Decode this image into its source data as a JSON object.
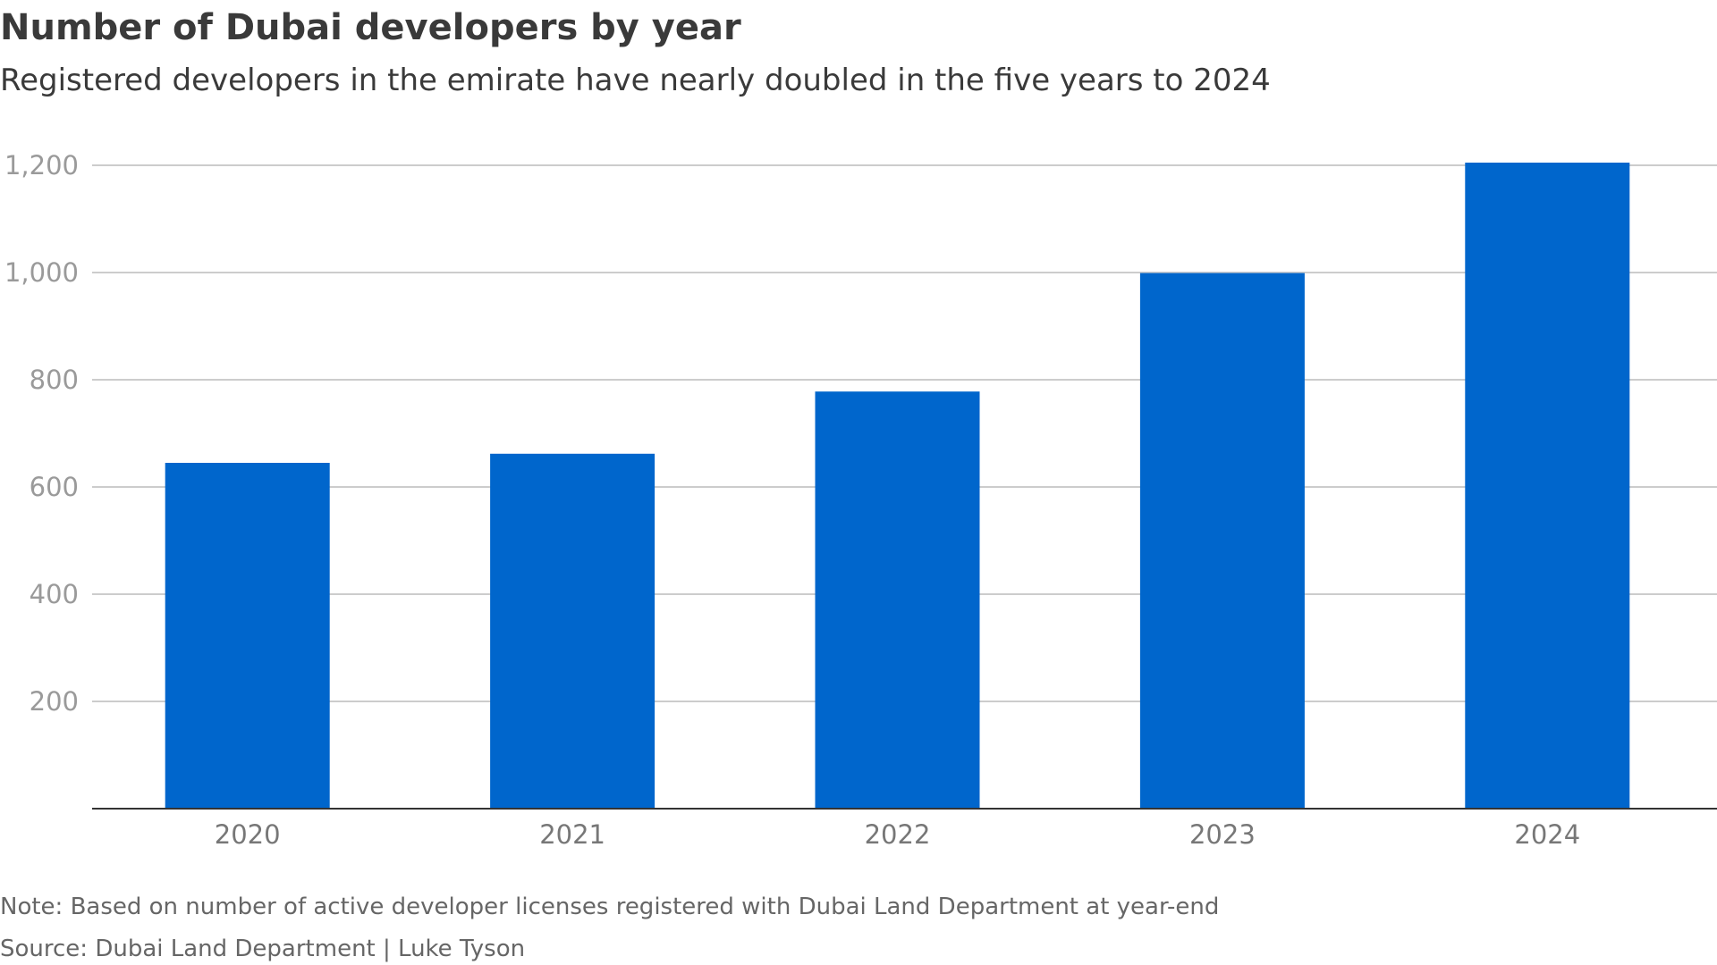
{
  "chart_data": {
    "type": "bar",
    "title": "Number of Dubai developers by year",
    "subtitle": "Registered developers in the emirate have nearly doubled in the five years to 2024",
    "categories": [
      "2020",
      "2021",
      "2022",
      "2023",
      "2024"
    ],
    "values": [
      645,
      662,
      778,
      999,
      1205
    ],
    "xlabel": "",
    "ylabel": "",
    "ylim": [
      0,
      1200
    ],
    "yticks": [
      200,
      400,
      600,
      800,
      1000,
      1200
    ],
    "ytick_labels": [
      "200",
      "400",
      "600",
      "800",
      "1,000",
      "1,200"
    ],
    "grid": true,
    "bar_color": "#0066CC",
    "note": "Note: Based on number of active developer licenses registered with Dubai Land Department at year-end",
    "source": "Source: Dubai Land Department | Luke Tyson"
  }
}
